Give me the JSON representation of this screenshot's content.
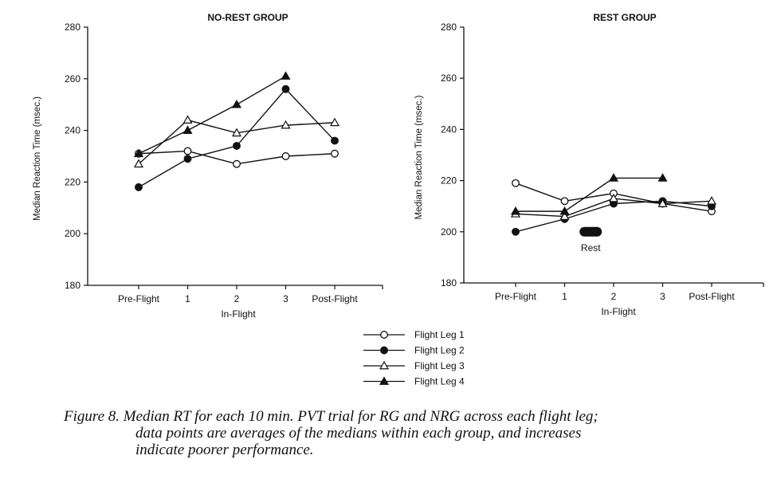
{
  "figure": {
    "legend": [
      {
        "label": "Flight Leg 1",
        "marker": "circle-open"
      },
      {
        "label": "Flight Leg 2",
        "marker": "circle-filled"
      },
      {
        "label": "Flight Leg 3",
        "marker": "triangle-open"
      },
      {
        "label": "Flight Leg 4",
        "marker": "triangle-filled"
      }
    ],
    "caption_lines": [
      "Figure 8. Median RT for each 10 min. PVT trial for RG and NRG across each flight leg;",
      "data points are averages of the medians within each group, and increases",
      "indicate poorer performance."
    ],
    "ink_color": "#111111"
  },
  "chart_data": [
    {
      "type": "line",
      "title": "NO-REST GROUP",
      "xlabel": "In-Flight",
      "ylabel": "Median Reaction Time (msec.)",
      "categories": [
        "Pre-Flight",
        "1",
        "2",
        "3",
        "Post-Flight"
      ],
      "ylim": [
        180,
        280
      ],
      "yticks": [
        180,
        200,
        220,
        240,
        260,
        280
      ],
      "series": [
        {
          "name": "Flight Leg 1",
          "marker": "circle-open",
          "values": [
            231,
            232,
            227,
            230,
            231
          ]
        },
        {
          "name": "Flight Leg 2",
          "marker": "circle-filled",
          "values": [
            218,
            229,
            234,
            256,
            236
          ]
        },
        {
          "name": "Flight Leg 3",
          "marker": "triangle-open",
          "values": [
            227,
            244,
            239,
            242,
            243
          ]
        },
        {
          "name": "Flight Leg 4",
          "marker": "triangle-filled",
          "values": [
            231,
            240,
            250,
            261,
            null
          ]
        }
      ],
      "annotations": []
    },
    {
      "type": "line",
      "title": "REST GROUP",
      "xlabel": "In-Flight",
      "ylabel": "Median Reaction Time (msec.)",
      "categories": [
        "Pre-Flight",
        "1",
        "2",
        "3",
        "Post-Flight"
      ],
      "ylim": [
        180,
        280
      ],
      "yticks": [
        180,
        200,
        220,
        240,
        260,
        280
      ],
      "series": [
        {
          "name": "Flight Leg 1",
          "marker": "circle-open",
          "values": [
            219,
            212,
            215,
            211,
            208
          ]
        },
        {
          "name": "Flight Leg 2",
          "marker": "circle-filled",
          "values": [
            200,
            205,
            211,
            212,
            210
          ]
        },
        {
          "name": "Flight Leg 3",
          "marker": "triangle-open",
          "values": [
            207,
            206,
            213,
            211,
            212
          ]
        },
        {
          "name": "Flight Leg 4",
          "marker": "triangle-filled",
          "values": [
            208,
            208,
            221,
            221,
            null
          ]
        }
      ],
      "annotations": [
        {
          "text": "Rest",
          "between": [
            "1",
            "2"
          ],
          "y": 200
        }
      ]
    }
  ]
}
